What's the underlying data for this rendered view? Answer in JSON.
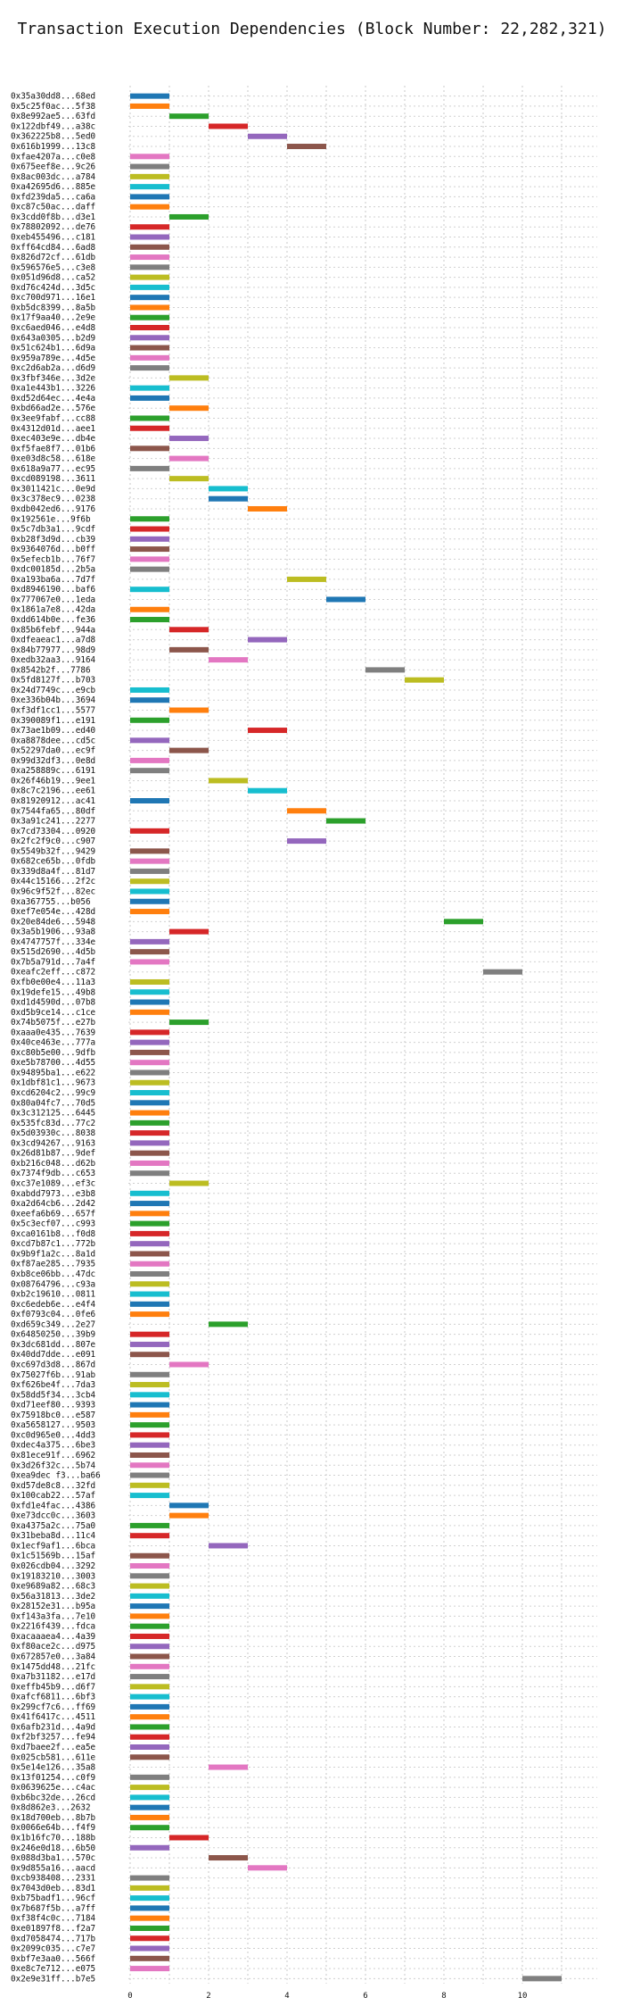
{
  "chart_data": {
    "type": "bar",
    "orientation": "horizontal",
    "title": "Transaction Execution Dependencies (Block Number: 22,282,321)",
    "xlabel": "",
    "ylabel": "",
    "xlim": [
      -0.5,
      11.0
    ],
    "xticks": [
      0,
      2,
      4,
      6,
      8,
      10
    ],
    "grid": true,
    "palette": [
      "#1f77b4",
      "#ff7f0e",
      "#2ca02c",
      "#d62728",
      "#9467bd",
      "#8c564b",
      "#e377c2",
      "#7f7f7f",
      "#bcbd22",
      "#17becf"
    ],
    "transactions": [
      {
        "label": "0x35a30dd8...68ed",
        "start": 0,
        "end": 1
      },
      {
        "label": "0x5c25f0ac...5f38",
        "start": 0,
        "end": 1
      },
      {
        "label": "0x8e992ae5...63fd",
        "start": 1,
        "end": 2
      },
      {
        "label": "0x122dbf49...a38c",
        "start": 2,
        "end": 3
      },
      {
        "label": "0x362225b8...5ed0",
        "start": 3,
        "end": 4
      },
      {
        "label": "0x616b1999...13c8",
        "start": 4,
        "end": 5
      },
      {
        "label": "0xfae4207a...c0e8",
        "start": 0,
        "end": 1
      },
      {
        "label": "0x675eef8e...9c26",
        "start": 0,
        "end": 1
      },
      {
        "label": "0x8ac003dc...a784",
        "start": 0,
        "end": 1
      },
      {
        "label": "0xa42695d6...885e",
        "start": 0,
        "end": 1
      },
      {
        "label": "0xfd239da5...ca6a",
        "start": 0,
        "end": 1
      },
      {
        "label": "0xc87c50ac...daff",
        "start": 0,
        "end": 1
      },
      {
        "label": "0x3cdd0f8b...d3e1",
        "start": 1,
        "end": 2
      },
      {
        "label": "0x78802092...de76",
        "start": 0,
        "end": 1
      },
      {
        "label": "0xeb455496...c181",
        "start": 0,
        "end": 1
      },
      {
        "label": "0xff64cd84...6ad8",
        "start": 0,
        "end": 1
      },
      {
        "label": "0x826d72cf...61db",
        "start": 0,
        "end": 1
      },
      {
        "label": "0x596576e5...c3e8",
        "start": 0,
        "end": 1
      },
      {
        "label": "0x051d96d8...ca52",
        "start": 0,
        "end": 1
      },
      {
        "label": "0xd76c424d...3d5c",
        "start": 0,
        "end": 1
      },
      {
        "label": "0xc700d971...16e1",
        "start": 0,
        "end": 1
      },
      {
        "label": "0xb5dc8399...8a5b",
        "start": 0,
        "end": 1
      },
      {
        "label": "0x17f9aa40...2e9e",
        "start": 0,
        "end": 1
      },
      {
        "label": "0xc6aed046...e4d8",
        "start": 0,
        "end": 1
      },
      {
        "label": "0x643a0305...b2d9",
        "start": 0,
        "end": 1
      },
      {
        "label": "0x51c624b1...6d9a",
        "start": 0,
        "end": 1
      },
      {
        "label": "0x959a789e...4d5e",
        "start": 0,
        "end": 1
      },
      {
        "label": "0xc2d6ab2a...d6d9",
        "start": 0,
        "end": 1
      },
      {
        "label": "0x3fbf346e...3d2e",
        "start": 1,
        "end": 2
      },
      {
        "label": "0xa1e443b1...3226",
        "start": 0,
        "end": 1
      },
      {
        "label": "0xd52d64ec...4e4a",
        "start": 0,
        "end": 1
      },
      {
        "label": "0xbd66ad2e...576e",
        "start": 1,
        "end": 2
      },
      {
        "label": "0x3ee9fabf...cc88",
        "start": 0,
        "end": 1
      },
      {
        "label": "0x4312d01d...aee1",
        "start": 0,
        "end": 1
      },
      {
        "label": "0xec403e9e...db4e",
        "start": 1,
        "end": 2
      },
      {
        "label": "0xf5fae8f7...01b6",
        "start": 0,
        "end": 1
      },
      {
        "label": "0xe03d8c58...618e",
        "start": 1,
        "end": 2
      },
      {
        "label": "0x618a9a77...ec95",
        "start": 0,
        "end": 1
      },
      {
        "label": "0xcd089198...3611",
        "start": 1,
        "end": 2
      },
      {
        "label": "0x3011421c...0e9d",
        "start": 2,
        "end": 3
      },
      {
        "label": "0x3c378ec9...0238",
        "start": 2,
        "end": 3
      },
      {
        "label": "0xdb042ed6...9176",
        "start": 3,
        "end": 4
      },
      {
        "label": "0x192561e...9f6b",
        "start": 0,
        "end": 1
      },
      {
        "label": "0x5c7db3a1...9cdf",
        "start": 0,
        "end": 1
      },
      {
        "label": "0xb28f3d9d...cb39",
        "start": 0,
        "end": 1
      },
      {
        "label": "0x9364076d...b0ff",
        "start": 0,
        "end": 1
      },
      {
        "label": "0x5efecb1b...76f7",
        "start": 0,
        "end": 1
      },
      {
        "label": "0xdc00185d...2b5a",
        "start": 0,
        "end": 1
      },
      {
        "label": "0xa193ba6a...7d7f",
        "start": 4,
        "end": 5
      },
      {
        "label": "0xd8946190...baf6",
        "start": 0,
        "end": 1
      },
      {
        "label": "0x777067e0...1eda",
        "start": 5,
        "end": 6
      },
      {
        "label": "0x1861a7e8...42da",
        "start": 0,
        "end": 1
      },
      {
        "label": "0xdd614b0e...fe36",
        "start": 0,
        "end": 1
      },
      {
        "label": "0x85b6febf...944a",
        "start": 1,
        "end": 2
      },
      {
        "label": "0xdfeaeac1...a7d8",
        "start": 3,
        "end": 4
      },
      {
        "label": "0x84b77977...98d9",
        "start": 1,
        "end": 2
      },
      {
        "label": "0xedb32aa3...9164",
        "start": 2,
        "end": 3
      },
      {
        "label": "0x8542b2f...7786",
        "start": 6,
        "end": 7
      },
      {
        "label": "0x5fd8127f...b703",
        "start": 7,
        "end": 8
      },
      {
        "label": "0x24d7749c...e9cb",
        "start": 0,
        "end": 1
      },
      {
        "label": "0xe336b04b...3694",
        "start": 0,
        "end": 1
      },
      {
        "label": "0xf3df1cc1...5577",
        "start": 1,
        "end": 2
      },
      {
        "label": "0x390089f1...e191",
        "start": 0,
        "end": 1
      },
      {
        "label": "0x73ae1b09...ed40",
        "start": 3,
        "end": 4
      },
      {
        "label": "0xa8878dee...cd5c",
        "start": 0,
        "end": 1
      },
      {
        "label": "0x52297da0...ec9f",
        "start": 1,
        "end": 2
      },
      {
        "label": "0x99d32df3...0e8d",
        "start": 0,
        "end": 1
      },
      {
        "label": "0xa258889c...6191",
        "start": 0,
        "end": 1
      },
      {
        "label": "0x26f46b19...9ee1",
        "start": 2,
        "end": 3
      },
      {
        "label": "0x8c7c2196...ee61",
        "start": 3,
        "end": 4
      },
      {
        "label": "0x81920912...ac41",
        "start": 0,
        "end": 1
      },
      {
        "label": "0x7544fa65...80df",
        "start": 4,
        "end": 5
      },
      {
        "label": "0x3a91c241...2277",
        "start": 5,
        "end": 6
      },
      {
        "label": "0x7cd73304...0920",
        "start": 0,
        "end": 1
      },
      {
        "label": "0x2fc2f9c0...c907",
        "start": 4,
        "end": 5
      },
      {
        "label": "0x5549b32f...9429",
        "start": 0,
        "end": 1
      },
      {
        "label": "0x682ce65b...0fdb",
        "start": 0,
        "end": 1
      },
      {
        "label": "0x339d8a4f...81d7",
        "start": 0,
        "end": 1
      },
      {
        "label": "0x44c15166...2f2c",
        "start": 0,
        "end": 1
      },
      {
        "label": "0x96c9f52f...82ec",
        "start": 0,
        "end": 1
      },
      {
        "label": "0xa367755...b056",
        "start": 0,
        "end": 1
      },
      {
        "label": "0xef7e054e...428d",
        "start": 0,
        "end": 1
      },
      {
        "label": "0x20e84de6...5948",
        "start": 8,
        "end": 9
      },
      {
        "label": "0x3a5b1906...93a8",
        "start": 1,
        "end": 2
      },
      {
        "label": "0x4747757f...334e",
        "start": 0,
        "end": 1
      },
      {
        "label": "0x515d2690...4d5b",
        "start": 0,
        "end": 1
      },
      {
        "label": "0x7b5a791d...7a4f",
        "start": 0,
        "end": 1
      },
      {
        "label": "0xeafc2eff...c872",
        "start": 9,
        "end": 10
      },
      {
        "label": "0xfb0e00e4...11a3",
        "start": 0,
        "end": 1
      },
      {
        "label": "0x19defe15...49b8",
        "start": 0,
        "end": 1
      },
      {
        "label": "0xd1d4590d...07b8",
        "start": 0,
        "end": 1
      },
      {
        "label": "0xd5b9ce14...c1ce",
        "start": 0,
        "end": 1
      },
      {
        "label": "0x74b5075f...e27b",
        "start": 1,
        "end": 2
      },
      {
        "label": "0xaaa0e435...7639",
        "start": 0,
        "end": 1
      },
      {
        "label": "0x40ce463e...777a",
        "start": 0,
        "end": 1
      },
      {
        "label": "0xc80b5e00...9dfb",
        "start": 0,
        "end": 1
      },
      {
        "label": "0xe5b78700...4d55",
        "start": 0,
        "end": 1
      },
      {
        "label": "0x94895ba1...e622",
        "start": 0,
        "end": 1
      },
      {
        "label": "0x1dbf81c1...9673",
        "start": 0,
        "end": 1
      },
      {
        "label": "0xcd6204c2...99c9",
        "start": 0,
        "end": 1
      },
      {
        "label": "0x80a04fc7...70d5",
        "start": 0,
        "end": 1
      },
      {
        "label": "0x3c312125...6445",
        "start": 0,
        "end": 1
      },
      {
        "label": "0x535fc83d...77c2",
        "start": 0,
        "end": 1
      },
      {
        "label": "0x5d03930c...8038",
        "start": 0,
        "end": 1
      },
      {
        "label": "0x3cd94267...9163",
        "start": 0,
        "end": 1
      },
      {
        "label": "0x26d81b87...9def",
        "start": 0,
        "end": 1
      },
      {
        "label": "0xb216c048...d62b",
        "start": 0,
        "end": 1
      },
      {
        "label": "0x7374f9db...c653",
        "start": 0,
        "end": 1
      },
      {
        "label": "0xc37e1089...ef3c",
        "start": 1,
        "end": 2
      },
      {
        "label": "0xabdd7973...e3b8",
        "start": 0,
        "end": 1
      },
      {
        "label": "0xa2d64cb6...2d42",
        "start": 0,
        "end": 1
      },
      {
        "label": "0xeefa6b69...657f",
        "start": 0,
        "end": 1
      },
      {
        "label": "0x5c3ecf07...c993",
        "start": 0,
        "end": 1
      },
      {
        "label": "0xca0161b8...f0d8",
        "start": 0,
        "end": 1
      },
      {
        "label": "0xcd7b87c1...772b",
        "start": 0,
        "end": 1
      },
      {
        "label": "0x9b9f1a2c...8a1d",
        "start": 0,
        "end": 1
      },
      {
        "label": "0xf87ae285...7935",
        "start": 0,
        "end": 1
      },
      {
        "label": "0xb8ce06bb...47dc",
        "start": 0,
        "end": 1
      },
      {
        "label": "0x08764796...c93a",
        "start": 0,
        "end": 1
      },
      {
        "label": "0xb2c19610...0811",
        "start": 0,
        "end": 1
      },
      {
        "label": "0xc6edeb6e...e4f4",
        "start": 0,
        "end": 1
      },
      {
        "label": "0xf0793c04...0fe6",
        "start": 0,
        "end": 1
      },
      {
        "label": "0xd659c349...2e27",
        "start": 2,
        "end": 3
      },
      {
        "label": "0x64850250...39b9",
        "start": 0,
        "end": 1
      },
      {
        "label": "0x3dc681dd...807e",
        "start": 0,
        "end": 1
      },
      {
        "label": "0x40dd7dde...e091",
        "start": 0,
        "end": 1
      },
      {
        "label": "0xc697d3d8...867d",
        "start": 1,
        "end": 2
      },
      {
        "label": "0x75027f6b...91ab",
        "start": 0,
        "end": 1
      },
      {
        "label": "0xf626be4f...7da3",
        "start": 0,
        "end": 1
      },
      {
        "label": "0x58dd5f34...3cb4",
        "start": 0,
        "end": 1
      },
      {
        "label": "0xd71eef80...9393",
        "start": 0,
        "end": 1
      },
      {
        "label": "0x75918bc0...e587",
        "start": 0,
        "end": 1
      },
      {
        "label": "0xa5658127...9503",
        "start": 0,
        "end": 1
      },
      {
        "label": "0xc0d965e0...4dd3",
        "start": 0,
        "end": 1
      },
      {
        "label": "0xdec4a375...6be3",
        "start": 0,
        "end": 1
      },
      {
        "label": "0x81ece91f...6962",
        "start": 0,
        "end": 1
      },
      {
        "label": "0x3d26f32c...5b74",
        "start": 0,
        "end": 1
      },
      {
        "label": "0xea9dec f3...ba66",
        "start": 0,
        "end": 1
      },
      {
        "label": "0xd57de8c8...32fd",
        "start": 0,
        "end": 1
      },
      {
        "label": "0x100cab22...57af",
        "start": 0,
        "end": 1
      },
      {
        "label": "0xfd1e4fac...4386",
        "start": 1,
        "end": 2
      },
      {
        "label": "0xe73dcc0c...3603",
        "start": 1,
        "end": 2
      },
      {
        "label": "0xa4375a2c...75a0",
        "start": 0,
        "end": 1
      },
      {
        "label": "0x31beba8d...11c4",
        "start": 0,
        "end": 1
      },
      {
        "label": "0x1ecf9af1...6bca",
        "start": 2,
        "end": 3
      },
      {
        "label": "0x1c51569b...15af",
        "start": 0,
        "end": 1
      },
      {
        "label": "0x026cdb04...3292",
        "start": 0,
        "end": 1
      },
      {
        "label": "0x19183210...3003",
        "start": 0,
        "end": 1
      },
      {
        "label": "0xe9689a82...68c3",
        "start": 0,
        "end": 1
      },
      {
        "label": "0x56a31813...3de2",
        "start": 0,
        "end": 1
      },
      {
        "label": "0x28152e31...b95a",
        "start": 0,
        "end": 1
      },
      {
        "label": "0xf143a3fa...7e10",
        "start": 0,
        "end": 1
      },
      {
        "label": "0x2216f439...fdca",
        "start": 0,
        "end": 1
      },
      {
        "label": "0xacaaaea4...4a39",
        "start": 0,
        "end": 1
      },
      {
        "label": "0xf80ace2c...d975",
        "start": 0,
        "end": 1
      },
      {
        "label": "0x672857e0...3a84",
        "start": 0,
        "end": 1
      },
      {
        "label": "0x1475dd48...21fc",
        "start": 0,
        "end": 1
      },
      {
        "label": "0xa7b31182...e17d",
        "start": 0,
        "end": 1
      },
      {
        "label": "0xeffb45b9...d6f7",
        "start": 0,
        "end": 1
      },
      {
        "label": "0xafcf6811...6bf3",
        "start": 0,
        "end": 1
      },
      {
        "label": "0x299cf7c6...ff69",
        "start": 0,
        "end": 1
      },
      {
        "label": "0x41f6417c...4511",
        "start": 0,
        "end": 1
      },
      {
        "label": "0x6afb231d...4a9d",
        "start": 0,
        "end": 1
      },
      {
        "label": "0xf2bf3257...fe94",
        "start": 0,
        "end": 1
      },
      {
        "label": "0xd7baee2f...ea5e",
        "start": 0,
        "end": 1
      },
      {
        "label": "0x025cb581...611e",
        "start": 0,
        "end": 1
      },
      {
        "label": "0x5e14e126...35a8",
        "start": 2,
        "end": 3
      },
      {
        "label": "0x13f01254...c0f9",
        "start": 0,
        "end": 1
      },
      {
        "label": "0x0639625e...c4ac",
        "start": 0,
        "end": 1
      },
      {
        "label": "0xb6bc32de...26cd",
        "start": 0,
        "end": 1
      },
      {
        "label": "0x8d862e3...2632",
        "start": 0,
        "end": 1
      },
      {
        "label": "0x18d700eb...8b7b",
        "start": 0,
        "end": 1
      },
      {
        "label": "0x0066e64b...f4f9",
        "start": 0,
        "end": 1
      },
      {
        "label": "0x1b16fc70...188b",
        "start": 1,
        "end": 2
      },
      {
        "label": "0x246e0d18...6b50",
        "start": 0,
        "end": 1
      },
      {
        "label": "0x088d3ba1...570c",
        "start": 2,
        "end": 3
      },
      {
        "label": "0x9d855a16...aacd",
        "start": 3,
        "end": 4
      },
      {
        "label": "0xcb938408...2331",
        "start": 0,
        "end": 1
      },
      {
        "label": "0x7043d0eb...83d1",
        "start": 0,
        "end": 1
      },
      {
        "label": "0xb75badf1...96cf",
        "start": 0,
        "end": 1
      },
      {
        "label": "0x7b687f5b...a7ff",
        "start": 0,
        "end": 1
      },
      {
        "label": "0xf38f4c0c...7184",
        "start": 0,
        "end": 1
      },
      {
        "label": "0xe01897f8...f2a7",
        "start": 0,
        "end": 1
      },
      {
        "label": "0xd7058474...717b",
        "start": 0,
        "end": 1
      },
      {
        "label": "0x2099c035...c7e7",
        "start": 0,
        "end": 1
      },
      {
        "label": "0xbf7e3aa0...566f",
        "start": 0,
        "end": 1
      },
      {
        "label": "0xe8c7e712...e075",
        "start": 0,
        "end": 1
      },
      {
        "label": "0x2e9e31ff...b7e5",
        "start": 10,
        "end": 11
      }
    ]
  }
}
